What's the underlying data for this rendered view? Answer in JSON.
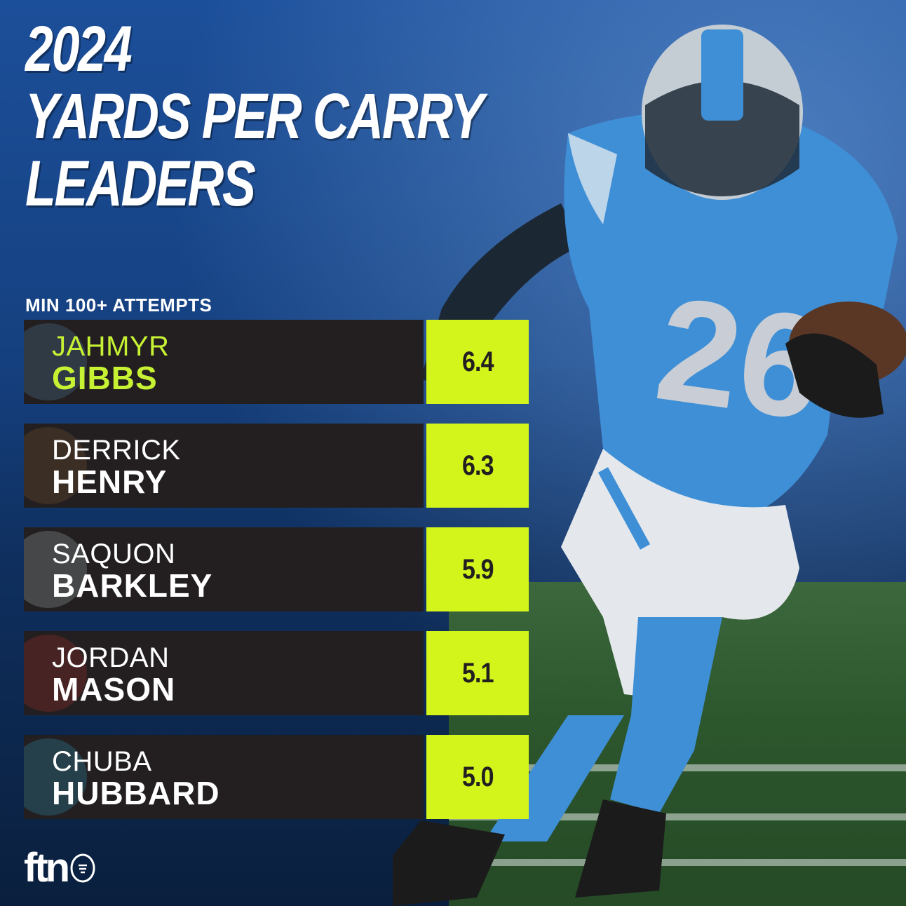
{
  "header": {
    "title_lines": [
      "2024",
      "YARDS PER CARRY",
      "LEADERS"
    ],
    "subtitle": "MIN 100+ ATTEMPTS"
  },
  "leaders": [
    {
      "first": "JAHMYR",
      "last": "GIBBS",
      "value": "6.4",
      "highlight": true
    },
    {
      "first": "DERRICK",
      "last": "HENRY",
      "value": "6.3"
    },
    {
      "first": "SAQUON",
      "last": "BARKLEY",
      "value": "5.9"
    },
    {
      "first": "JORDAN",
      "last": "MASON",
      "value": "5.1"
    },
    {
      "first": "CHUBA",
      "last": "HUBBARD",
      "value": "5.0"
    }
  ],
  "brand": {
    "name": "ftn"
  },
  "colors": {
    "accent": "#d4f51c",
    "highlight_text": "#c6f233",
    "row_bg": "#231f20",
    "jersey_blue": "#3f8fd6"
  }
}
